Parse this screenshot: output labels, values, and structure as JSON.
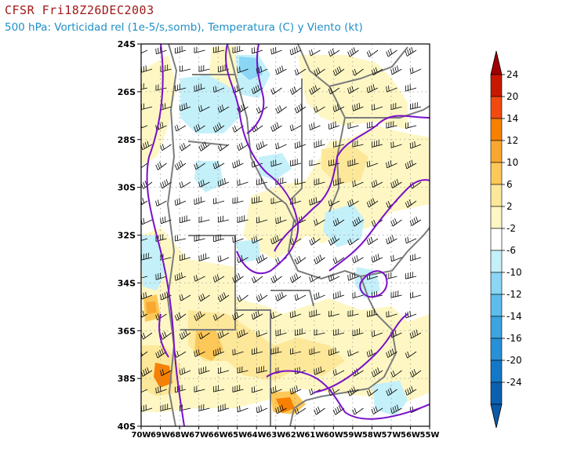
{
  "title": "CFSR Fri18Z26DEC2003",
  "subtitle": "500 hPa: Vorticidad rel (1e-5/s,somb), Temperatura (C) y Viento (kt)",
  "map": {
    "lat_range": [
      -40,
      -24
    ],
    "lon_range": [
      -70,
      -55
    ],
    "lat_labels": [
      "24S",
      "26S",
      "28S",
      "30S",
      "32S",
      "34S",
      "36S",
      "38S",
      "40S"
    ],
    "lon_labels": [
      "70W",
      "69W",
      "68W",
      "67W",
      "66W",
      "65W",
      "64W",
      "63W",
      "62W",
      "61W",
      "60W",
      "59W",
      "58W",
      "57W",
      "56W",
      "55W"
    ]
  },
  "colorbar": {
    "labels": [
      "24",
      "20",
      "14",
      "12",
      "10",
      "6",
      "2",
      "-2",
      "-6",
      "-10",
      "-12",
      "-14",
      "-16",
      "-20",
      "-24"
    ],
    "colors": [
      "#c81800",
      "#f04a10",
      "#f88000",
      "#f8a830",
      "#fcc858",
      "#fde89a",
      "#fef7c4",
      "#ffffff",
      "#c4f0fa",
      "#8ad6f4",
      "#5cbcec",
      "#3ca4e0",
      "#2890d6",
      "#1478c8",
      "#0c60b0"
    ],
    "top_arrow_color": "#a00000",
    "bottom_arrow_color": "#0a5aa8"
  },
  "colors": {
    "temperature_contour": "#7a10c8",
    "borders": "#7c7c7c",
    "wind_barbs": "#000000"
  }
}
